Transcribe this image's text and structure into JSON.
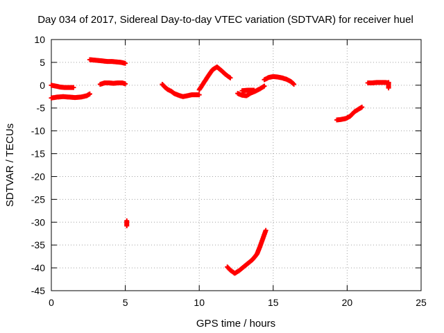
{
  "chart_data": {
    "type": "scatter",
    "title": "Day 034 of 2017, Sidereal Day-to-day VTEC variation (SDTVAR) for receiver huel",
    "xlabel": "GPS time / hours",
    "ylabel": "SDTVAR / TECUs",
    "xlim": [
      0,
      25
    ],
    "ylim": [
      -45,
      10
    ],
    "xticks": [
      0,
      5,
      10,
      15,
      20,
      25
    ],
    "yticks": [
      10,
      5,
      0,
      -5,
      -10,
      -15,
      -20,
      -25,
      -30,
      -35,
      -40,
      -45
    ],
    "grid": true,
    "marker": "+",
    "color": "#ff0000",
    "segments": [
      {
        "x": [
          0.0,
          0.3,
          0.6,
          0.9,
          1.2,
          1.5
        ],
        "y": [
          0.0,
          -0.2,
          -0.4,
          -0.5,
          -0.5,
          -0.5
        ]
      },
      {
        "x": [
          0.0,
          0.4,
          0.8,
          1.2,
          1.6,
          2.0,
          2.4,
          2.6
        ],
        "y": [
          -2.8,
          -2.6,
          -2.5,
          -2.6,
          -2.7,
          -2.6,
          -2.3,
          -1.9
        ]
      },
      {
        "x": [
          2.6,
          2.9,
          3.2,
          3.5,
          3.8,
          4.1,
          4.4,
          4.7,
          5.0
        ],
        "y": [
          5.6,
          5.5,
          5.4,
          5.3,
          5.2,
          5.2,
          5.1,
          5.0,
          4.8
        ]
      },
      {
        "x": [
          3.3,
          3.6,
          3.9,
          4.2,
          4.5,
          4.8,
          5.0
        ],
        "y": [
          0.2,
          0.5,
          0.5,
          0.4,
          0.5,
          0.5,
          0.3
        ]
      },
      {
        "x": [
          5.1,
          5.1
        ],
        "y": [
          -29.7,
          -30.8
        ]
      },
      {
        "x": [
          7.5,
          7.7,
          7.9,
          8.1,
          8.3,
          8.6,
          8.9,
          9.2,
          9.5,
          9.8,
          10.0
        ],
        "y": [
          0.2,
          -0.5,
          -1.0,
          -1.3,
          -1.8,
          -2.2,
          -2.5,
          -2.3,
          -2.1,
          -2.1,
          -2.1
        ]
      },
      {
        "x": [
          10.0,
          10.3,
          10.6,
          10.9,
          11.2,
          11.5,
          11.8,
          12.1
        ],
        "y": [
          -1.0,
          0.5,
          2.0,
          3.4,
          4.0,
          3.2,
          2.3,
          1.6
        ]
      },
      {
        "x": [
          12.6,
          12.9,
          13.2,
          13.5,
          13.8,
          14.1,
          14.4
        ],
        "y": [
          -1.8,
          -2.2,
          -2.3,
          -1.7,
          -1.3,
          -0.8,
          -0.2
        ]
      },
      {
        "x": [
          12.9,
          13.3,
          13.7
        ],
        "y": [
          -1.2,
          -1.1,
          -1.1
        ]
      },
      {
        "x": [
          14.4,
          14.7,
          15.0,
          15.3,
          15.6,
          15.9,
          16.2,
          16.4
        ],
        "y": [
          1.2,
          1.7,
          1.9,
          1.8,
          1.6,
          1.3,
          0.8,
          0.2
        ]
      },
      {
        "x": [
          11.9,
          12.1,
          12.4,
          12.7,
          13.0,
          13.3,
          13.6,
          13.9,
          14.1,
          14.3,
          14.5
        ],
        "y": [
          -39.8,
          -40.5,
          -41.2,
          -40.6,
          -39.8,
          -39.0,
          -38.2,
          -37.0,
          -35.4,
          -33.6,
          -31.8
        ]
      },
      {
        "x": [
          19.3,
          19.6,
          19.9,
          20.2,
          20.5,
          20.8,
          21.0
        ],
        "y": [
          -7.6,
          -7.5,
          -7.3,
          -6.8,
          -5.8,
          -5.2,
          -4.8
        ]
      },
      {
        "x": [
          21.4,
          21.7,
          22.0,
          22.3,
          22.6,
          22.8
        ],
        "y": [
          0.5,
          0.5,
          0.6,
          0.6,
          0.6,
          0.5
        ]
      },
      {
        "x": [
          22.8,
          22.8
        ],
        "y": [
          0.6,
          -0.6
        ]
      }
    ]
  }
}
